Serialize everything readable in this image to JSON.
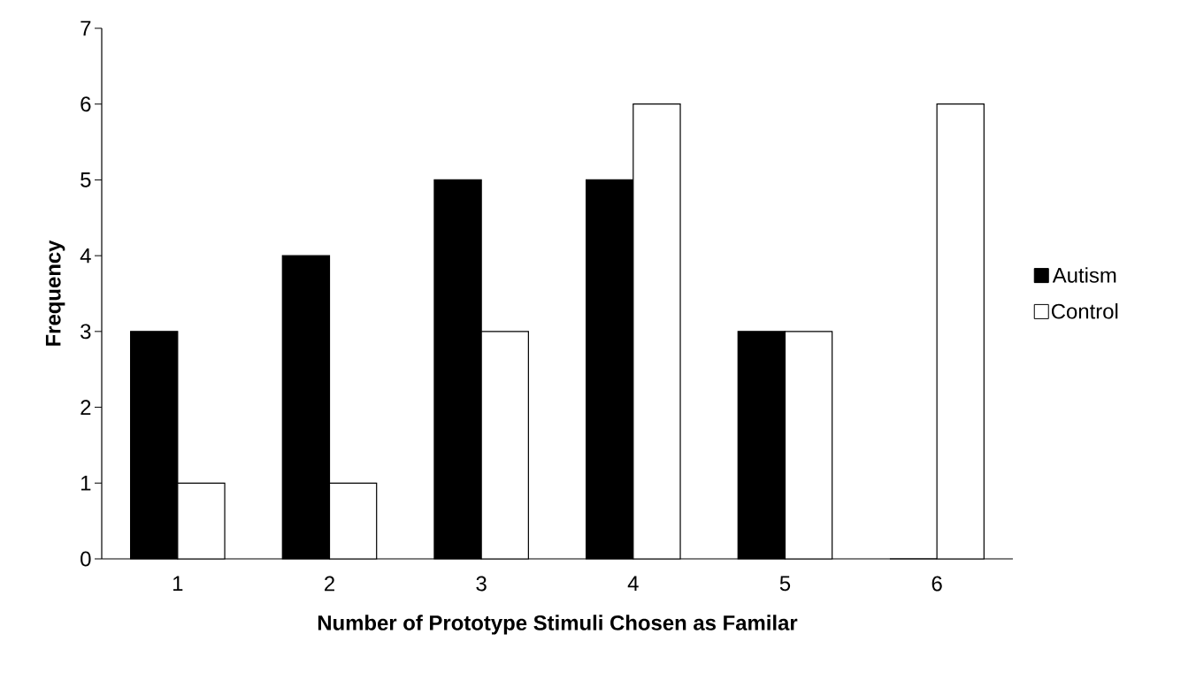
{
  "chart_data": {
    "type": "bar",
    "xlabel": "Number of Prototype Stimuli Chosen as Familar",
    "ylabel": "Frequency",
    "categories": [
      "1",
      "2",
      "3",
      "4",
      "5",
      "6"
    ],
    "series": [
      {
        "name": "Autism",
        "color": "#000000",
        "values": [
          3,
          4,
          5,
          5,
          3,
          0
        ]
      },
      {
        "name": "Control",
        "color": "#ffffff",
        "values": [
          1,
          1,
          3,
          6,
          3,
          6
        ]
      }
    ],
    "ylim": [
      0,
      7
    ],
    "yticks": [
      0,
      1,
      2,
      3,
      4,
      5,
      6,
      7
    ],
    "grid": false,
    "legend": "right"
  }
}
